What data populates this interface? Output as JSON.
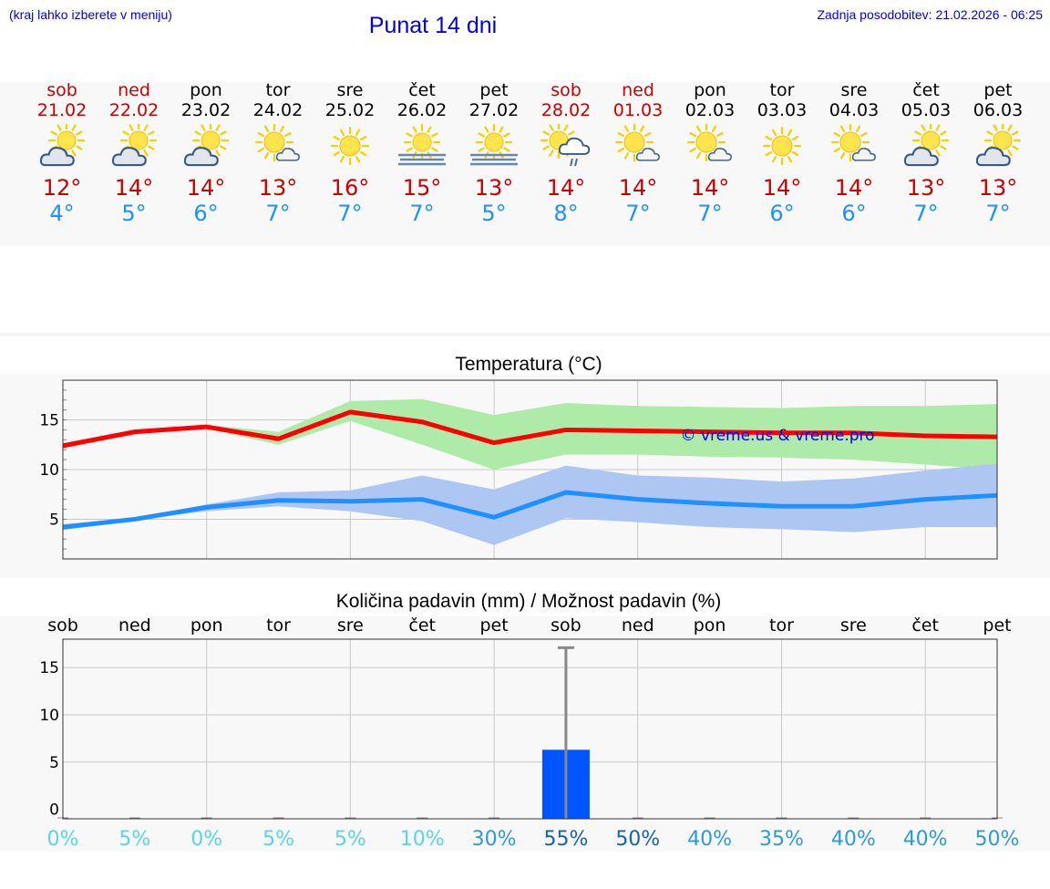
{
  "header": {
    "menu_hint": "(kraj lahko izberete v meniju)",
    "title": "Punat 14 dni",
    "last_update": "Zadnja posodobitev: 21.02.2026 - 06:25"
  },
  "days": [
    {
      "name": "sob",
      "date": "21.02",
      "icon": "partly-cloudy-icon",
      "max": "12°",
      "min": "4°",
      "weekend": true
    },
    {
      "name": "ned",
      "date": "22.02",
      "icon": "partly-cloudy-icon",
      "max": "14°",
      "min": "5°",
      "weekend": true
    },
    {
      "name": "pon",
      "date": "23.02",
      "icon": "partly-cloudy-icon",
      "max": "14°",
      "min": "6°",
      "weekend": false
    },
    {
      "name": "tor",
      "date": "24.02",
      "icon": "mostly-sunny-icon",
      "max": "13°",
      "min": "7°",
      "weekend": false
    },
    {
      "name": "sre",
      "date": "25.02",
      "icon": "sunny-icon",
      "max": "16°",
      "min": "7°",
      "weekend": false
    },
    {
      "name": "čet",
      "date": "26.02",
      "icon": "sunny-fog-icon",
      "max": "15°",
      "min": "7°",
      "weekend": false
    },
    {
      "name": "pet",
      "date": "27.02",
      "icon": "sunny-fog-icon",
      "max": "13°",
      "min": "5°",
      "weekend": false
    },
    {
      "name": "sob",
      "date": "28.02",
      "icon": "sun-cloud-rain-icon",
      "max": "14°",
      "min": "8°",
      "weekend": true
    },
    {
      "name": "ned",
      "date": "01.03",
      "icon": "mostly-sunny-icon",
      "max": "14°",
      "min": "7°",
      "weekend": true
    },
    {
      "name": "pon",
      "date": "02.03",
      "icon": "mostly-sunny-icon",
      "max": "14°",
      "min": "7°",
      "weekend": false
    },
    {
      "name": "tor",
      "date": "03.03",
      "icon": "sunny-icon",
      "max": "14°",
      "min": "6°",
      "weekend": false
    },
    {
      "name": "sre",
      "date": "04.03",
      "icon": "mostly-sunny-icon",
      "max": "14°",
      "min": "6°",
      "weekend": false
    },
    {
      "name": "čet",
      "date": "05.03",
      "icon": "partly-cloudy-icon",
      "max": "13°",
      "min": "7°",
      "weekend": false
    },
    {
      "name": "pet",
      "date": "06.03",
      "icon": "partly-cloudy-icon",
      "max": "13°",
      "min": "7°",
      "weekend": false
    }
  ],
  "chart_data": [
    {
      "type": "line",
      "title": "Temperatura (°C)",
      "watermark": "© vreme.us & vreme.pro",
      "x": [
        0,
        1,
        2,
        3,
        4,
        5,
        6,
        7,
        8,
        9,
        10,
        11,
        12,
        13
      ],
      "ylim": [
        1,
        19
      ],
      "yticks": [
        5,
        10,
        15
      ],
      "grid": true,
      "series": [
        {
          "name": "max",
          "color": "#ff0000",
          "values": [
            12.4,
            13.8,
            14.3,
            13.1,
            15.8,
            14.8,
            12.7,
            14.0,
            13.9,
            13.8,
            13.7,
            13.7,
            13.4,
            13.3
          ]
        },
        {
          "name": "max_range_low",
          "color": "#aeeaa8",
          "values": [
            12.2,
            13.7,
            14.1,
            12.5,
            14.9,
            12.5,
            10.0,
            11.5,
            11.5,
            11.3,
            11.2,
            11.0,
            10.5,
            10.0
          ]
        },
        {
          "name": "max_range_high",
          "color": "#aeeaa8",
          "values": [
            12.6,
            13.9,
            14.5,
            13.8,
            16.9,
            17.1,
            15.5,
            16.7,
            16.4,
            16.3,
            16.2,
            16.4,
            16.4,
            16.6
          ]
        },
        {
          "name": "min",
          "color": "#1e90ff",
          "values": [
            4.2,
            5.0,
            6.2,
            6.9,
            6.8,
            7.0,
            5.2,
            7.7,
            7.0,
            6.6,
            6.3,
            6.3,
            7.0,
            7.4
          ]
        },
        {
          "name": "min_range_low",
          "color": "#aec7f2",
          "values": [
            3.9,
            4.9,
            5.8,
            6.3,
            5.8,
            4.8,
            2.4,
            5.1,
            4.7,
            4.2,
            4.0,
            3.7,
            4.2,
            4.2
          ]
        },
        {
          "name": "min_range_high",
          "color": "#aec7f2",
          "values": [
            4.5,
            5.1,
            6.5,
            7.7,
            7.9,
            9.4,
            8.0,
            10.4,
            9.4,
            9.2,
            8.8,
            9.1,
            9.9,
            10.6
          ]
        }
      ]
    },
    {
      "type": "bar",
      "title": "Količina padavin (mm) / Možnost padavin (%)",
      "categories": [
        "sob",
        "ned",
        "pon",
        "tor",
        "sre",
        "čet",
        "pet",
        "sob",
        "ned",
        "pon",
        "tor",
        "sre",
        "čet",
        "pet"
      ],
      "values": [
        0,
        0,
        0,
        0,
        0,
        0,
        0,
        6.3,
        0,
        0,
        0,
        0,
        0,
        0
      ],
      "error_high": [
        0,
        0,
        0,
        0,
        0,
        0,
        0,
        17.1,
        0,
        0,
        0,
        0,
        0,
        0
      ],
      "ylim": [
        -1,
        18
      ],
      "yticks": [
        0,
        5,
        10,
        15
      ],
      "bar_color": "#0055ff",
      "probability": [
        "0%",
        "5%",
        "0%",
        "5%",
        "5%",
        "10%",
        "30%",
        "55%",
        "50%",
        "40%",
        "35%",
        "40%",
        "40%",
        "50%"
      ],
      "probability_colors": [
        "#59d4e8",
        "#59d4e8",
        "#59d4e8",
        "#59d4e8",
        "#59d4e8",
        "#59d4e8",
        "#2e9ad6",
        "#1560b8",
        "#1560b8",
        "#2e9ad6",
        "#2e9ad6",
        "#2e9ad6",
        "#2e9ad6",
        "#2e9ad6"
      ]
    }
  ]
}
